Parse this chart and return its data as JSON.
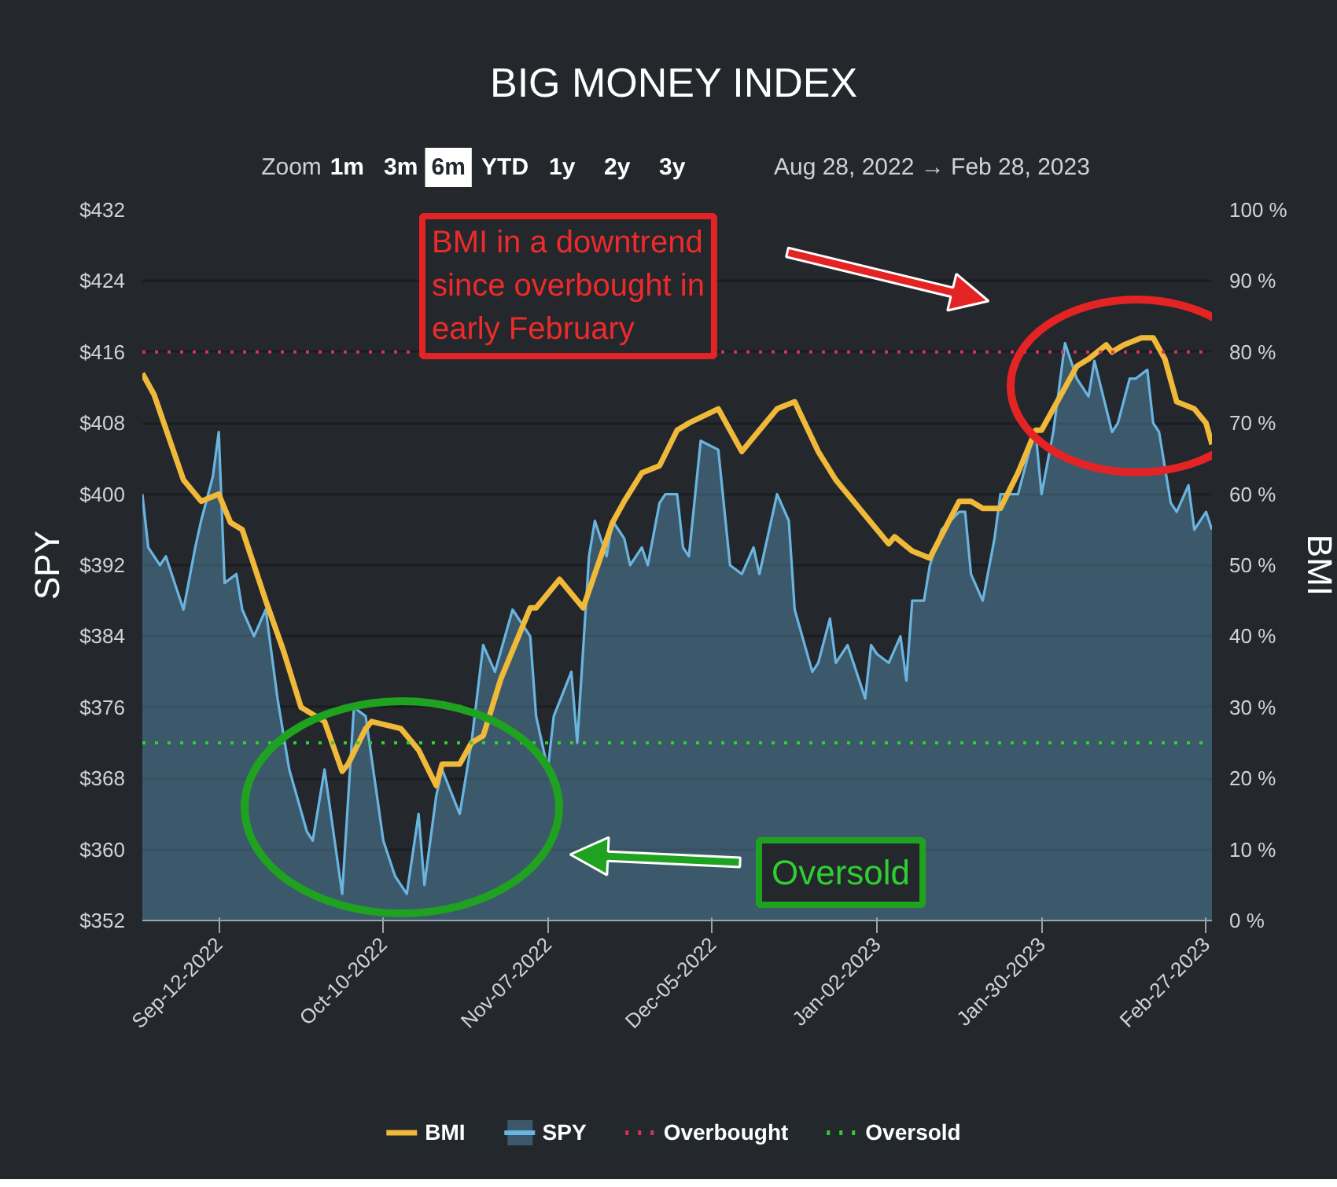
{
  "chart_data": {
    "type": "line",
    "title": "BIG MONEY INDEX",
    "ylabel": "SPY",
    "y2label": "BMI",
    "annotations": [
      "BMI in a downtrend\nsince overbought in\nearly February",
      "Oversold",
      "Zoom",
      "1m",
      "3m",
      "6m",
      "YTD",
      "1y",
      "2y",
      "3y",
      "Aug 28, 2022  →  Feb 28, 2023"
    ],
    "xlim": [
      "2022-08-30",
      "2023-02-28"
    ],
    "xticks": [
      {
        "value": "2022-09-12",
        "label": "Sep-12-2022"
      },
      {
        "value": "2022-10-10",
        "label": "Oct-10-2022"
      },
      {
        "value": "2022-11-07",
        "label": "Nov-07-2022"
      },
      {
        "value": "2022-12-05",
        "label": "Dec-05-2022"
      },
      {
        "value": "2023-01-02",
        "label": "Jan-02-2023"
      },
      {
        "value": "2023-01-30",
        "label": "Jan-30-2023"
      },
      {
        "value": "2023-02-27",
        "label": "Feb-27-2023"
      }
    ],
    "ylim": [
      352,
      432
    ],
    "yticks": [
      {
        "value": 352,
        "label": "$352"
      },
      {
        "value": 360,
        "label": "$360"
      },
      {
        "value": 368,
        "label": "$368"
      },
      {
        "value": 376,
        "label": "$376"
      },
      {
        "value": 384,
        "label": "$384"
      },
      {
        "value": 392,
        "label": "$392"
      },
      {
        "value": 400,
        "label": "$400"
      },
      {
        "value": 408,
        "label": "$408"
      },
      {
        "value": 416,
        "label": "$416"
      },
      {
        "value": 424,
        "label": "$424"
      },
      {
        "value": 432,
        "label": "$432"
      }
    ],
    "y2lim": [
      0,
      100
    ],
    "y2ticks": [
      {
        "value": 0,
        "label": "0 %"
      },
      {
        "value": 10,
        "label": "10 %"
      },
      {
        "value": 20,
        "label": "20 %"
      },
      {
        "value": 30,
        "label": "30 %"
      },
      {
        "value": 40,
        "label": "40 %"
      },
      {
        "value": 50,
        "label": "50 %"
      },
      {
        "value": 60,
        "label": "60 %"
      },
      {
        "value": 70,
        "label": "70 %"
      },
      {
        "value": 80,
        "label": "80 %"
      },
      {
        "value": 90,
        "label": "90 %"
      },
      {
        "value": 100,
        "label": "100 %"
      }
    ],
    "grid": "y",
    "legend": "bottom",
    "ref_lines": [
      {
        "axis": "y2",
        "value": 80,
        "label": "Overbought",
        "color": "#d6315b",
        "line_style": "dotted"
      },
      {
        "axis": "y2",
        "value": 25,
        "label": "Oversold",
        "color": "#2fcf2f",
        "line_style": "dotted"
      }
    ],
    "series": [
      {
        "name": "BMI",
        "axis": "y2",
        "color": "#f0b93a",
        "x": [
          "2022-08-30",
          "2022-09-01",
          "2022-09-06",
          "2022-09-09",
          "2022-09-12",
          "2022-09-14",
          "2022-09-16",
          "2022-09-20",
          "2022-09-23",
          "2022-09-26",
          "2022-09-30",
          "2022-10-03",
          "2022-10-04",
          "2022-10-07",
          "2022-10-08",
          "2022-10-13",
          "2022-10-15",
          "2022-10-16",
          "2022-10-19",
          "2022-10-20",
          "2022-10-23",
          "2022-10-25",
          "2022-10-27",
          "2022-10-30",
          "2022-11-04",
          "2022-11-05",
          "2022-11-09",
          "2022-11-13",
          "2022-11-18",
          "2022-11-20",
          "2022-11-23",
          "2022-11-26",
          "2022-11-29",
          "2022-12-01",
          "2022-12-06",
          "2022-12-10",
          "2022-12-12",
          "2022-12-14",
          "2022-12-16",
          "2022-12-19",
          "2022-12-23",
          "2022-12-26",
          "2022-12-31",
          "2023-01-04",
          "2023-01-05",
          "2023-01-08",
          "2023-01-11",
          "2023-01-16",
          "2023-01-18",
          "2023-01-20",
          "2023-01-23",
          "2023-01-26",
          "2023-01-29",
          "2023-01-30",
          "2023-02-05",
          "2023-02-07",
          "2023-02-10",
          "2023-02-11",
          "2023-02-13",
          "2023-02-16",
          "2023-02-18",
          "2023-02-20",
          "2023-02-22",
          "2023-02-25",
          "2023-02-27",
          "2023-02-28"
        ],
        "values": [
          77,
          74,
          62,
          59,
          60,
          56,
          55,
          45,
          38,
          30,
          28,
          21,
          22,
          27,
          28,
          27,
          25,
          24,
          19,
          22,
          22,
          25,
          26,
          34,
          44,
          44,
          48,
          44,
          56,
          59,
          63,
          64,
          69,
          70,
          72,
          66,
          68,
          70,
          72,
          73,
          66,
          62,
          57,
          53,
          54,
          52,
          51,
          59,
          59,
          58,
          58,
          63,
          69,
          69,
          78,
          79,
          81,
          80,
          81,
          82,
          82,
          79,
          73,
          72,
          70,
          67
        ]
      },
      {
        "name": "SPY",
        "type": "area",
        "axis": "y",
        "color": "#6ab4e0",
        "x": [
          "2022-08-30",
          "2022-08-31",
          "2022-09-02",
          "2022-09-03",
          "2022-09-05",
          "2022-09-06",
          "2022-09-08",
          "2022-09-09",
          "2022-09-11",
          "2022-09-12",
          "2022-09-13",
          "2022-09-15",
          "2022-09-16",
          "2022-09-18",
          "2022-09-20",
          "2022-09-22",
          "2022-09-24",
          "2022-09-27",
          "2022-09-28",
          "2022-09-30",
          "2022-10-03",
          "2022-10-05",
          "2022-10-07",
          "2022-10-10",
          "2022-10-12",
          "2022-10-14",
          "2022-10-16",
          "2022-10-17",
          "2022-10-19",
          "2022-10-20",
          "2022-10-23",
          "2022-10-25",
          "2022-10-27",
          "2022-10-29",
          "2022-11-01",
          "2022-11-04",
          "2022-11-05",
          "2022-11-07",
          "2022-11-08",
          "2022-11-11",
          "2022-11-12",
          "2022-11-14",
          "2022-11-15",
          "2022-11-17",
          "2022-11-18",
          "2022-11-20",
          "2022-11-21",
          "2022-11-23",
          "2022-11-24",
          "2022-11-26",
          "2022-11-27",
          "2022-11-29",
          "2022-11-30",
          "2022-12-01",
          "2022-12-03",
          "2022-12-06",
          "2022-12-08",
          "2022-12-10",
          "2022-12-12",
          "2022-12-13",
          "2022-12-16",
          "2022-12-18",
          "2022-12-19",
          "2022-12-22",
          "2022-12-23",
          "2022-12-25",
          "2022-12-26",
          "2022-12-28",
          "2022-12-29",
          "2022-12-31",
          "2023-01-01",
          "2023-01-02",
          "2023-01-04",
          "2023-01-06",
          "2023-01-07",
          "2023-01-08",
          "2023-01-10",
          "2023-01-11",
          "2023-01-13",
          "2023-01-16",
          "2023-01-17",
          "2023-01-18",
          "2023-01-20",
          "2023-01-22",
          "2023-01-23",
          "2023-01-26",
          "2023-01-28",
          "2023-01-29",
          "2023-01-30",
          "2023-02-01",
          "2023-02-03",
          "2023-02-05",
          "2023-02-07",
          "2023-02-08",
          "2023-02-11",
          "2023-02-12",
          "2023-02-14",
          "2023-02-15",
          "2023-02-17",
          "2023-02-18",
          "2023-02-19",
          "2023-02-21",
          "2023-02-22",
          "2023-02-24",
          "2023-02-25",
          "2023-02-27",
          "2023-02-28"
        ],
        "values": [
          400,
          394,
          392,
          393,
          389,
          387,
          394,
          397,
          402,
          407,
          390,
          391,
          387,
          384,
          387,
          377,
          369,
          362,
          361,
          369,
          355,
          376,
          375,
          361,
          357,
          355,
          364,
          356,
          366,
          369,
          364,
          372,
          383,
          380,
          387,
          384,
          375,
          369,
          375,
          380,
          372,
          393,
          397,
          393,
          397,
          395,
          392,
          394,
          392,
          399,
          400,
          400,
          394,
          393,
          406,
          405,
          392,
          391,
          394,
          391,
          400,
          397,
          387,
          380,
          381,
          386,
          381,
          383,
          381,
          377,
          383,
          382,
          381,
          384,
          379,
          388,
          388,
          392,
          396,
          398,
          398,
          391,
          388,
          395,
          400,
          400,
          405,
          407,
          400,
          407,
          417,
          413,
          411,
          415,
          407,
          408,
          413,
          413,
          414,
          408,
          407,
          399,
          398,
          401,
          396,
          398,
          396
        ]
      }
    ]
  }
}
